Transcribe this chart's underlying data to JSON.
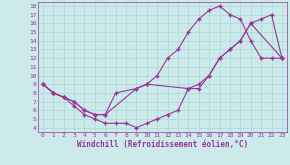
{
  "xlabel": "Windchill (Refroidissement éolien,°C)",
  "bg_color": "#cceaea",
  "line_color": "#993399",
  "xlim": [
    -0.5,
    23.5
  ],
  "ylim": [
    3.5,
    18.5
  ],
  "yticks": [
    4,
    5,
    6,
    7,
    8,
    9,
    10,
    11,
    12,
    13,
    14,
    15,
    16,
    17,
    18
  ],
  "xticks": [
    0,
    1,
    2,
    3,
    4,
    5,
    6,
    7,
    8,
    9,
    10,
    11,
    12,
    13,
    14,
    15,
    16,
    17,
    18,
    19,
    20,
    21,
    22,
    23
  ],
  "line1_x": [
    0,
    1,
    2,
    3,
    4,
    5,
    6,
    7,
    8,
    9,
    10,
    11,
    12,
    13,
    14,
    15,
    16,
    17,
    18,
    19,
    20,
    21,
    22,
    23
  ],
  "line1_y": [
    9,
    8,
    7.5,
    6.5,
    5.5,
    5,
    4.5,
    4.5,
    4.5,
    4,
    4.5,
    5,
    5.5,
    6,
    8.5,
    8.5,
    10,
    12,
    13,
    14,
    16,
    16.5,
    17,
    12
  ],
  "line2_x": [
    0,
    1,
    2,
    3,
    4,
    5,
    6,
    7,
    9,
    10,
    11,
    12,
    13,
    14,
    15,
    16,
    17,
    18,
    19,
    20,
    21,
    22,
    23
  ],
  "line2_y": [
    9,
    8,
    7.5,
    7,
    6,
    5.5,
    5.5,
    8,
    8.5,
    9,
    10,
    12,
    13,
    15,
    16.5,
    17.5,
    18,
    17,
    16.5,
    14,
    12,
    12,
    12
  ],
  "line3_x": [
    0,
    1,
    2,
    3,
    4,
    5,
    6,
    9,
    10,
    14,
    15,
    16,
    17,
    18,
    19,
    20,
    23
  ],
  "line3_y": [
    9,
    8,
    7.5,
    7,
    6,
    5.5,
    5.5,
    8.5,
    9,
    8.5,
    9,
    10,
    12,
    13,
    14,
    16,
    12
  ],
  "grid_color": "#aad8d8"
}
